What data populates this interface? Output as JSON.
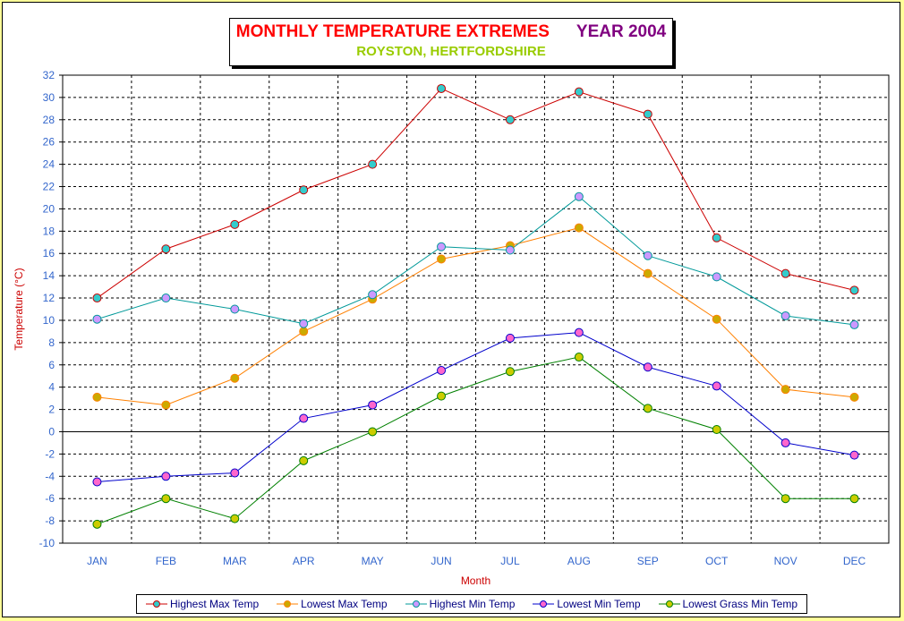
{
  "title": {
    "main": "MONTHLY TEMPERATURE EXTREMES",
    "year": "YEAR  2004",
    "subtitle": "ROYSTON, HERTFORDSHIRE"
  },
  "colors": {
    "page_background": "#ffff99",
    "axis_text": "#3366cc",
    "axis_title": "#cc0000"
  },
  "chart_data": {
    "type": "line",
    "title": "MONTHLY TEMPERATURE EXTREMES    YEAR  2004",
    "subtitle": "ROYSTON, HERTFORDSHIRE",
    "xlabel": "Month",
    "ylabel": "Temperature (°C)",
    "ylim": [
      -10,
      32
    ],
    "ytick_step": 2,
    "grid": true,
    "legend_position": "bottom",
    "categories": [
      "JAN",
      "FEB",
      "MAR",
      "APR",
      "MAY",
      "JUN",
      "JUL",
      "AUG",
      "SEP",
      "OCT",
      "NOV",
      "DEC"
    ],
    "series": [
      {
        "name": "Highest Max Temp",
        "line_color": "#cc0000",
        "marker_color": "#33cccc",
        "values": [
          12.0,
          16.4,
          18.6,
          21.7,
          24.0,
          30.8,
          28.0,
          30.5,
          28.5,
          17.4,
          14.2,
          12.7
        ]
      },
      {
        "name": "Lowest Max Temp",
        "line_color": "#ff8000",
        "marker_color": "#ccaa00",
        "values": [
          3.1,
          2.4,
          4.8,
          9.0,
          11.9,
          15.5,
          16.7,
          18.3,
          14.2,
          10.1,
          3.8,
          3.1
        ]
      },
      {
        "name": "Highest Min Temp",
        "line_color": "#009999",
        "marker_color": "#cc99ff",
        "values": [
          10.1,
          12.0,
          11.0,
          9.7,
          12.3,
          16.6,
          16.3,
          21.1,
          15.8,
          13.9,
          10.4,
          9.6
        ]
      },
      {
        "name": "Lowest Min Temp",
        "line_color": "#0000cc",
        "marker_color": "#ff66cc",
        "values": [
          -4.5,
          -4.0,
          -3.7,
          1.2,
          2.4,
          5.5,
          8.4,
          8.9,
          5.8,
          4.1,
          -1.0,
          -2.1
        ]
      },
      {
        "name": "Lowest Grass Min Temp",
        "line_color": "#008000",
        "marker_color": "#cccc00",
        "values": [
          -8.3,
          -6.0,
          -7.8,
          -2.6,
          0.0,
          3.2,
          5.4,
          6.7,
          2.1,
          0.2,
          -6.0,
          -6.0
        ]
      }
    ]
  }
}
